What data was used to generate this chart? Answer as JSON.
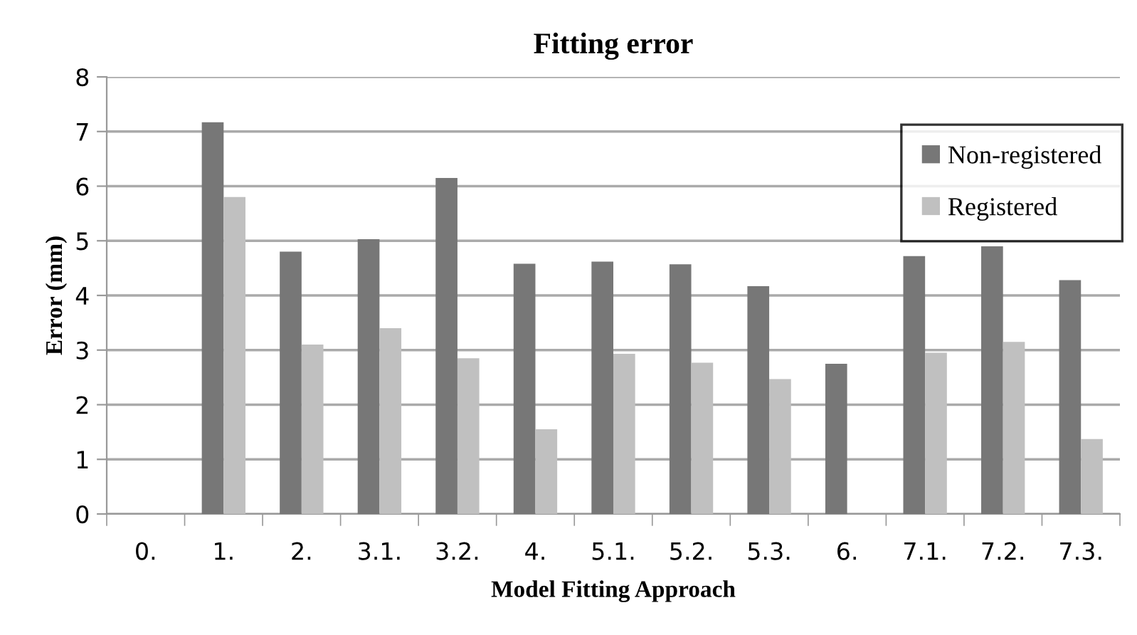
{
  "chart_data": {
    "type": "bar",
    "title": "Fitting error",
    "xlabel": "Model Fitting Approach",
    "ylabel": "Error (mm)",
    "categories": [
      "0.",
      "1.",
      "2.",
      "3.1.",
      "3.2.",
      "4.",
      "5.1.",
      "5.2.",
      "5.3.",
      "6.",
      "7.1.",
      "7.2.",
      "7.3."
    ],
    "series": [
      {
        "name": "Non-registered",
        "color": "#777777",
        "values": [
          null,
          7.17,
          4.8,
          5.03,
          6.15,
          4.58,
          4.62,
          4.57,
          4.17,
          2.75,
          4.72,
          4.9,
          4.28
        ]
      },
      {
        "name": "Registered",
        "color": "#c0c0c0",
        "values": [
          null,
          5.8,
          3.1,
          3.4,
          2.85,
          1.55,
          2.93,
          2.77,
          2.47,
          null,
          2.95,
          3.15,
          1.37
        ]
      }
    ],
    "ylim": [
      0,
      8
    ],
    "yticks": [
      0,
      1,
      2,
      3,
      4,
      5,
      6,
      7,
      8
    ],
    "grid": "y",
    "legend": "top right"
  }
}
